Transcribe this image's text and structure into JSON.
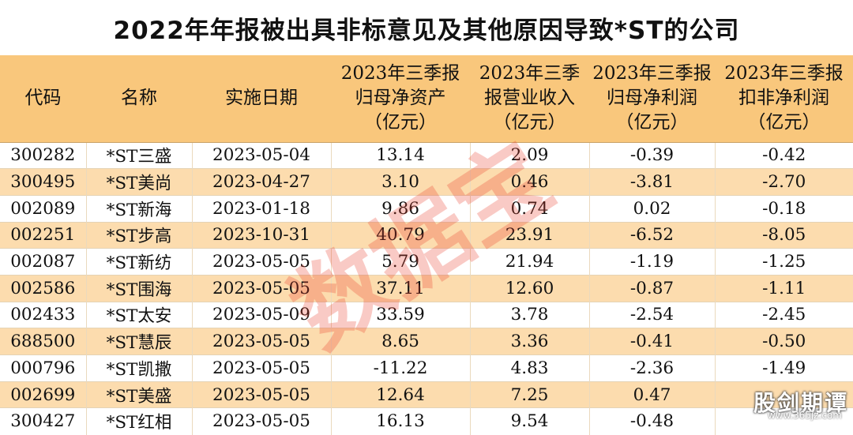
{
  "title": "2022年年报被出具非标意见及其他原因导致*ST的公司",
  "table": {
    "headers": [
      [
        "代码"
      ],
      [
        "名称"
      ],
      [
        "实施日期"
      ],
      [
        "2023年三季报",
        "归母净资产",
        "（亿元）"
      ],
      [
        "2023年三季",
        "报营业收入",
        "（亿元）"
      ],
      [
        "2023年三季报",
        "归母净利润",
        "（亿元）"
      ],
      [
        "2023年三季报",
        "扣非净利润",
        "（亿元）"
      ]
    ],
    "rows": [
      [
        "300282",
        "*ST三盛",
        "2023-05-04",
        "13.14",
        "2.09",
        "-0.39",
        "-0.42"
      ],
      [
        "300495",
        "*ST美尚",
        "2023-04-27",
        "3.10",
        "0.46",
        "-3.81",
        "-2.70"
      ],
      [
        "002089",
        "*ST新海",
        "2023-01-18",
        "9.86",
        "0.74",
        "0.02",
        "-0.18"
      ],
      [
        "002251",
        "*ST步高",
        "2023-10-31",
        "40.79",
        "23.91",
        "-6.52",
        "-8.05"
      ],
      [
        "002087",
        "*ST新纺",
        "2023-05-05",
        "5.79",
        "21.94",
        "-1.19",
        "-1.25"
      ],
      [
        "002586",
        "*ST围海",
        "2023-05-05",
        "37.11",
        "12.60",
        "-0.87",
        "-1.11"
      ],
      [
        "002433",
        "*ST太安",
        "2023-05-09",
        "33.59",
        "3.78",
        "-2.54",
        "-2.45"
      ],
      [
        "688500",
        "*ST慧辰",
        "2023-05-05",
        "8.65",
        "3.36",
        "-0.41",
        "-0.50"
      ],
      [
        "000796",
        "*ST凯撒",
        "2023-05-05",
        "-11.22",
        "4.83",
        "-2.36",
        "-1.49"
      ],
      [
        "002699",
        "*ST美盛",
        "2023-05-05",
        "12.64",
        "7.25",
        "0.47",
        ""
      ],
      [
        "300427",
        "*ST红相",
        "2023-05-05",
        "16.13",
        "9.54",
        "-0.48",
        ""
      ]
    ]
  },
  "watermark": "数据宝",
  "brand": {
    "name": "股剑期谭",
    "url": "www.365jz.com"
  },
  "colors": {
    "header_bg": "#f9c77c",
    "stripe_bg": "#fcdcae",
    "watermark": "#e8402f"
  }
}
